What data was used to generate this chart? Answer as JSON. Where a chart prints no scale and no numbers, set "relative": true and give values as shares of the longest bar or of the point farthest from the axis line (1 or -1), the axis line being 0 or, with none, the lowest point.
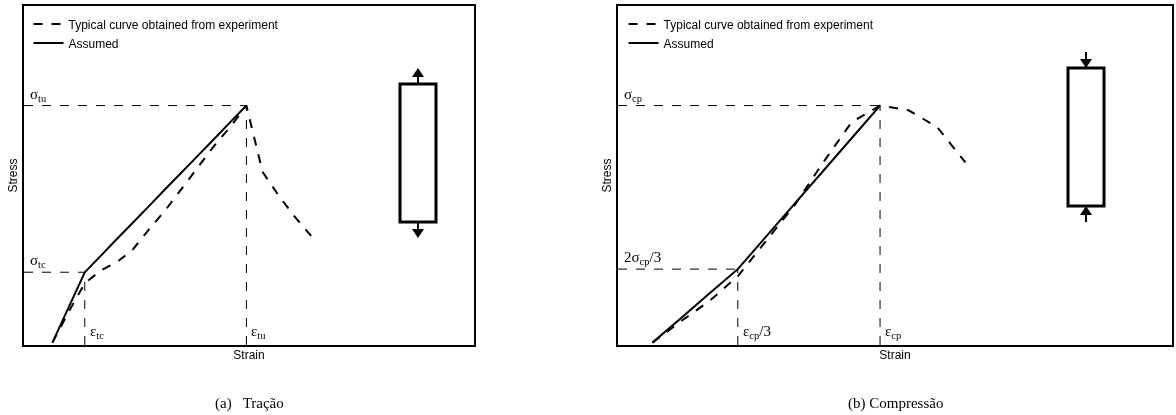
{
  "chart_data": [
    {
      "type": "line",
      "relative": true,
      "xlabel": "Strain",
      "ylabel": "Stress",
      "legend": "top left",
      "marker": "none",
      "grid": false,
      "categories": [
        null,
        null,
        null,
        null,
        null,
        null,
        null,
        null,
        null,
        null,
        null,
        null,
        null,
        null,
        null,
        null,
        null
      ],
      "series": [
        {
          "name": "Typical curve obtained from experiment",
          "color": "#000000",
          "line_style": "dashed",
          "values": [
            0,
            0.13,
            0.25,
            0.305,
            0.34,
            0.395,
            0.48,
            0.56,
            0.65,
            0.74,
            0.83,
            0.91,
            1,
            0.72,
            0.62,
            0.53,
            0.45
          ]
        },
        {
          "name": "Assumed",
          "color": "#000000",
          "line_style": "solid",
          "values": [
            0,
            0.149,
            0.297,
            0.367,
            0.438,
            0.508,
            0.578,
            0.649,
            0.719,
            0.789,
            0.859,
            0.93,
            1,
            null,
            null,
            null,
            null
          ]
        }
      ],
      "annotations": [
        "(a)   Tração",
        "σ$_{tc}$",
        "σ$_{tu}$",
        "ε$_{tc}$",
        "ε$_{tu}$"
      ]
    },
    {
      "type": "line",
      "relative": true,
      "xlabel": "Strain",
      "ylabel": "Stress",
      "legend": "top left",
      "marker": "none",
      "grid": false,
      "categories": [
        null,
        null,
        null,
        null,
        null,
        null,
        null,
        null,
        null,
        null,
        null,
        null
      ],
      "series": [
        {
          "name": "Typical curve obtained from experiment",
          "color": "#000000",
          "line_style": "dashed",
          "values": [
            0,
            0.09,
            0.175,
            0.28,
            0.43,
            0.58,
            0.76,
            0.93,
            1,
            0.98,
            0.91,
            0.76
          ]
        },
        {
          "name": "Assumed",
          "color": "#000000",
          "line_style": "solid",
          "values": [
            0,
            0.103,
            0.207,
            0.31,
            0.448,
            0.586,
            0.724,
            0.862,
            1,
            null,
            null,
            null
          ]
        }
      ],
      "annotations": [
        "(b) Compressão",
        "2σ$_{cp}$/3",
        "σ$_{cp}$",
        "ε$_{cp}$/3",
        "ε$_{cp}$"
      ]
    }
  ]
}
